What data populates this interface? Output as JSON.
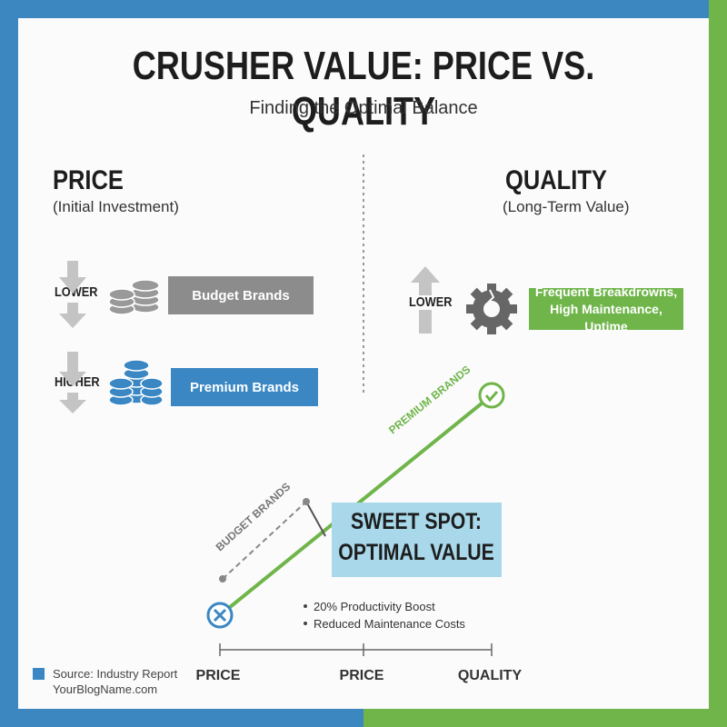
{
  "header": {
    "title": "CRUSHER VALUE: PRICE VS. QUALITY",
    "subtitle": "Finding the Optimal Balance"
  },
  "price": {
    "heading": "PRICE",
    "subheading": "(Initial Investment)",
    "rows": [
      {
        "level": "LOWER",
        "label": "Budget Brands"
      },
      {
        "level": "HIGHER",
        "label": "Premium Brands"
      }
    ]
  },
  "quality": {
    "heading": "QUALITY",
    "subheading": "(Long-Term Value)",
    "level": "LOWER",
    "label_lines": [
      "Frequent Breakdrowns,",
      "High Maintenance, Uptime"
    ]
  },
  "diagram": {
    "premium_label": "PREMIUM BRANDS",
    "budget_label": "BUDGET BRANDS",
    "callout_lines": [
      "SWEET SPOT:",
      "OPTIMAL VALUE"
    ],
    "bullets": [
      "20% Productivity Boost",
      "Reduced Maintenance Costs"
    ],
    "axis_labels": [
      "PRICE",
      "PRICE",
      "QUALITY"
    ]
  },
  "footer": {
    "source": "Source: Industry Report",
    "site": "YourBlogName.com"
  }
}
